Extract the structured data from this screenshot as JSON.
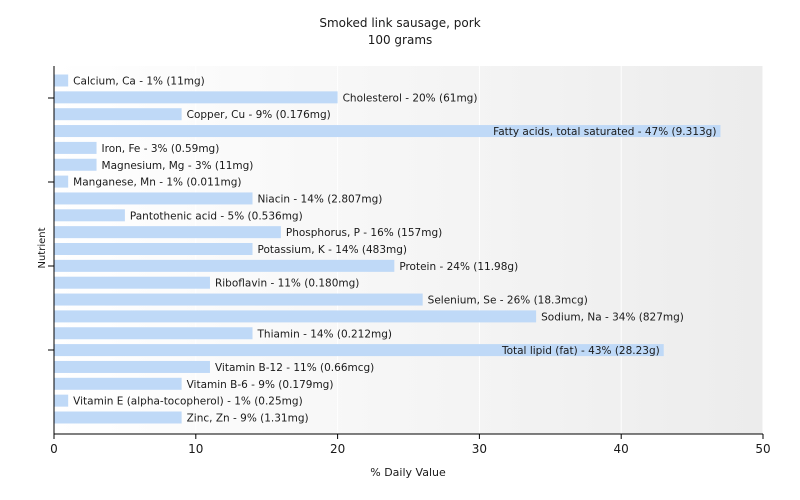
{
  "chart_data": {
    "type": "bar",
    "orientation": "horizontal",
    "title": "Smoked link sausage, pork",
    "subtitle": "100 grams",
    "xlabel": "% Daily Value",
    "ylabel": "Nutrient",
    "xlim": [
      0,
      50
    ],
    "xticks": [
      0,
      10,
      20,
      30,
      40,
      50
    ],
    "grid": true,
    "bar_color": "#bfd9f7",
    "categories": [
      "Calcium, Ca",
      "Cholesterol",
      "Copper, Cu",
      "Fatty acids, total saturated",
      "Iron, Fe",
      "Magnesium, Mg",
      "Manganese, Mn",
      "Niacin",
      "Pantothenic acid",
      "Phosphorus, P",
      "Potassium, K",
      "Protein",
      "Riboflavin",
      "Selenium, Se",
      "Sodium, Na",
      "Thiamin",
      "Total lipid (fat)",
      "Vitamin B-12",
      "Vitamin B-6",
      "Vitamin E (alpha-tocopherol)",
      "Zinc, Zn"
    ],
    "values": [
      1,
      20,
      9,
      47,
      3,
      3,
      1,
      14,
      5,
      16,
      14,
      24,
      11,
      26,
      34,
      14,
      43,
      11,
      9,
      1,
      9
    ],
    "labels": [
      "Calcium, Ca - 1% (11mg)",
      "Cholesterol - 20% (61mg)",
      "Copper, Cu - 9% (0.176mg)",
      "Fatty acids, total saturated - 47% (9.313g)",
      "Iron, Fe - 3% (0.59mg)",
      "Magnesium, Mg - 3% (11mg)",
      "Manganese, Mn - 1% (0.011mg)",
      "Niacin - 14% (2.807mg)",
      "Pantothenic acid - 5% (0.536mg)",
      "Phosphorus, P - 16% (157mg)",
      "Potassium, K - 14% (483mg)",
      "Protein - 24% (11.98g)",
      "Riboflavin - 11% (0.180mg)",
      "Selenium, Se - 26% (18.3mcg)",
      "Sodium, Na - 34% (827mg)",
      "Thiamin - 14% (0.212mg)",
      "Total lipid (fat) - 43% (28.23g)",
      "Vitamin B-12 - 11% (0.66mcg)",
      "Vitamin B-6 - 9% (0.179mg)",
      "Vitamin E (alpha-tocopherol) - 1% (0.25mg)",
      "Zinc, Zn - 9% (1.31mg)"
    ]
  }
}
